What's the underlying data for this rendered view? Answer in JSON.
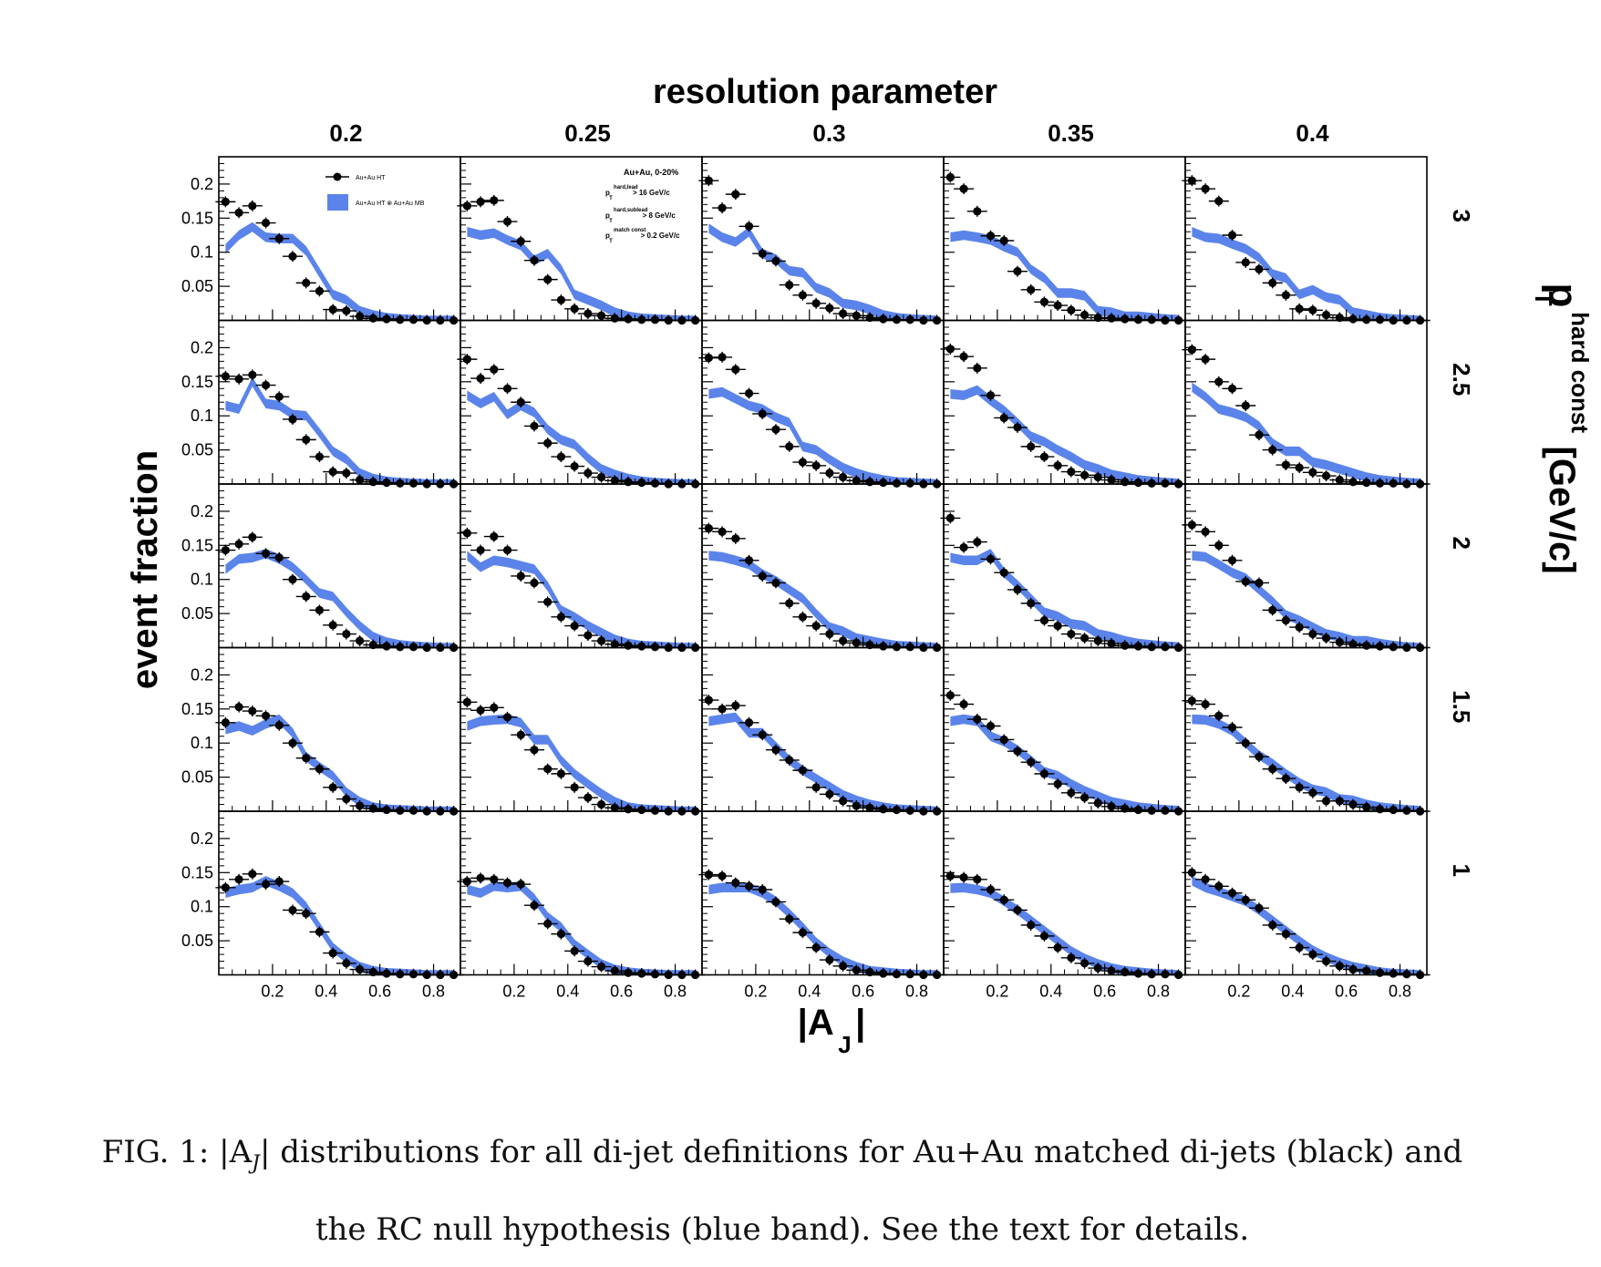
{
  "figure": {
    "col_header_title": "resolution parameter",
    "col_labels": [
      "0.2",
      "0.25",
      "0.3",
      "0.35",
      "0.4"
    ],
    "row_header_title_main": "p",
    "row_header_title_sup": "hard const",
    "row_header_title_sub": "T",
    "row_header_title_unit": "[GeV/c]",
    "row_labels": [
      "3",
      "2.5",
      "2",
      "1.5",
      "1"
    ],
    "ylabel": "event fraction",
    "xlabel_main": "|A",
    "xlabel_sub": "J",
    "xlabel_end": "|",
    "y_tick_labels": [
      "0.2",
      "0.15",
      "0.1",
      "0.05"
    ],
    "x_tick_labels": [
      "0.2",
      "0.4",
      "0.6",
      "0.8"
    ],
    "legend": {
      "series1": "Au+Au HT",
      "series2": "Au+Au HT  ⊗  Au+Au MB"
    },
    "annotation": {
      "line1": "Au+Au, 0-20%",
      "line2_label": "p",
      "line2_sup": "hard,lead",
      "line2_sub": "T",
      "line2_val": "> 16 GeV/c",
      "line3_label": "p",
      "line3_sup": "hard,sublead",
      "line3_sub": "T",
      "line3_val": "> 8 GeV/c",
      "line4_label": "p",
      "line4_sup": "match const",
      "line4_sub": "T",
      "line4_val": "> 0.2 GeV/c"
    },
    "colors": {
      "band": "#5b84ea",
      "points": "#000000"
    }
  },
  "caption": {
    "prefix": "FIG. 1: |A",
    "sub": "J",
    "line1_rest": "| distributions for all di-jet definitions for Au+Au matched di-jets (black) and",
    "line2": "the RC null hypothesis (blue band). See the text for details."
  },
  "chart_data": {
    "type": "scatter",
    "x": [
      0.025,
      0.075,
      0.125,
      0.175,
      0.225,
      0.275,
      0.325,
      0.375,
      0.425,
      0.475,
      0.525,
      0.575,
      0.625,
      0.675,
      0.725,
      0.775,
      0.825,
      0.875
    ],
    "xlim": [
      0,
      0.9
    ],
    "ylim": [
      0,
      0.24
    ],
    "panels": [
      {
        "row": "3",
        "col": "0.2",
        "points": [
          0.174,
          0.158,
          0.168,
          0.143,
          0.12,
          0.094,
          0.055,
          0.043,
          0.016,
          0.014,
          0.006,
          0.003,
          0.002,
          0.001,
          0.001,
          0,
          0,
          0
        ],
        "band": [
          0.105,
          0.125,
          0.137,
          0.122,
          0.12,
          0.12,
          0.102,
          0.07,
          0.038,
          0.03,
          0.014,
          0.008,
          0.004,
          0.002,
          0.001,
          0,
          0,
          0
        ]
      },
      {
        "row": "3",
        "col": "0.25",
        "points": [
          0.168,
          0.174,
          0.176,
          0.145,
          0.116,
          0.088,
          0.06,
          0.03,
          0.017,
          0.01,
          0.007,
          0.003,
          0.002,
          0.001,
          0.001,
          0,
          0,
          0
        ],
        "band": [
          0.13,
          0.125,
          0.128,
          0.118,
          0.11,
          0.088,
          0.098,
          0.075,
          0.038,
          0.03,
          0.022,
          0.012,
          0.006,
          0.003,
          0.002,
          0.001,
          0,
          0
        ]
      },
      {
        "row": "3",
        "col": "0.3",
        "points": [
          0.205,
          0.165,
          0.185,
          0.138,
          0.098,
          0.087,
          0.052,
          0.037,
          0.025,
          0.018,
          0.01,
          0.007,
          0.004,
          0.002,
          0.001,
          0.001,
          0,
          0
        ],
        "band": [
          0.135,
          0.122,
          0.115,
          0.13,
          0.098,
          0.09,
          0.073,
          0.07,
          0.048,
          0.04,
          0.025,
          0.022,
          0.016,
          0.008,
          0.004,
          0.002,
          0.001,
          0
        ]
      },
      {
        "row": "3",
        "col": "0.35",
        "points": [
          0.21,
          0.193,
          0.16,
          0.124,
          0.117,
          0.072,
          0.045,
          0.027,
          0.022,
          0.015,
          0.008,
          0.004,
          0.003,
          0.002,
          0.001,
          0.001,
          0,
          0
        ],
        "band": [
          0.122,
          0.125,
          0.122,
          0.118,
          0.108,
          0.1,
          0.075,
          0.062,
          0.04,
          0.04,
          0.036,
          0.014,
          0.012,
          0.006,
          0.006,
          0.004,
          0.002,
          0.001
        ]
      },
      {
        "row": "3",
        "col": "0.4",
        "points": [
          0.205,
          0.193,
          0.175,
          0.125,
          0.085,
          0.075,
          0.055,
          0.037,
          0.017,
          0.015,
          0.008,
          0.004,
          0.002,
          0.001,
          0.001,
          0,
          0,
          0
        ],
        "band": [
          0.13,
          0.122,
          0.12,
          0.112,
          0.105,
          0.092,
          0.068,
          0.062,
          0.038,
          0.045,
          0.034,
          0.03,
          0.012,
          0.008,
          0.004,
          0.002,
          0.001,
          0
        ]
      },
      {
        "row": "2.5",
        "col": "0.2",
        "points": [
          0.158,
          0.154,
          0.16,
          0.145,
          0.128,
          0.095,
          0.065,
          0.04,
          0.018,
          0.016,
          0.006,
          0.003,
          0.002,
          0.001,
          0.001,
          0,
          0,
          0
        ],
        "band": [
          0.115,
          0.11,
          0.15,
          0.118,
          0.115,
          0.102,
          0.1,
          0.075,
          0.048,
          0.036,
          0.016,
          0.008,
          0.004,
          0.002,
          0.001,
          0,
          0,
          0
        ]
      },
      {
        "row": "2.5",
        "col": "0.25",
        "points": [
          0.183,
          0.155,
          0.168,
          0.14,
          0.12,
          0.085,
          0.06,
          0.04,
          0.026,
          0.016,
          0.01,
          0.005,
          0.003,
          0.002,
          0.001,
          0,
          0,
          0
        ],
        "band": [
          0.13,
          0.118,
          0.128,
          0.102,
          0.115,
          0.105,
          0.08,
          0.065,
          0.058,
          0.038,
          0.022,
          0.014,
          0.008,
          0.004,
          0.002,
          0.001,
          0,
          0
        ]
      },
      {
        "row": "2.5",
        "col": "0.3",
        "points": [
          0.185,
          0.186,
          0.168,
          0.133,
          0.103,
          0.08,
          0.055,
          0.032,
          0.027,
          0.016,
          0.01,
          0.005,
          0.003,
          0.002,
          0.001,
          0.001,
          0,
          0
        ],
        "band": [
          0.132,
          0.135,
          0.125,
          0.115,
          0.11,
          0.098,
          0.09,
          0.055,
          0.05,
          0.036,
          0.024,
          0.016,
          0.01,
          0.006,
          0.003,
          0.002,
          0.001,
          0
        ]
      },
      {
        "row": "2.5",
        "col": "0.35",
        "points": [
          0.198,
          0.187,
          0.17,
          0.13,
          0.097,
          0.083,
          0.055,
          0.04,
          0.027,
          0.018,
          0.013,
          0.01,
          0.006,
          0.003,
          0.002,
          0.001,
          0.001,
          0
        ],
        "band": [
          0.132,
          0.13,
          0.138,
          0.122,
          0.108,
          0.09,
          0.07,
          0.062,
          0.05,
          0.04,
          0.028,
          0.022,
          0.014,
          0.01,
          0.006,
          0.004,
          0.002,
          0.001
        ]
      },
      {
        "row": "2.5",
        "col": "0.4",
        "points": [
          0.197,
          0.183,
          0.15,
          0.14,
          0.115,
          0.072,
          0.05,
          0.028,
          0.024,
          0.017,
          0.012,
          0.006,
          0.003,
          0.002,
          0.001,
          0.001,
          0,
          0
        ],
        "band": [
          0.142,
          0.128,
          0.11,
          0.105,
          0.098,
          0.085,
          0.06,
          0.048,
          0.048,
          0.032,
          0.028,
          0.022,
          0.016,
          0.01,
          0.006,
          0.004,
          0.002,
          0.001
        ]
      },
      {
        "row": "2",
        "col": "0.2",
        "points": [
          0.143,
          0.152,
          0.162,
          0.138,
          0.132,
          0.1,
          0.075,
          0.055,
          0.033,
          0.02,
          0.01,
          0.004,
          0.002,
          0.001,
          0.001,
          0,
          0,
          0
        ],
        "band": [
          0.115,
          0.13,
          0.132,
          0.138,
          0.13,
          0.118,
          0.1,
          0.08,
          0.075,
          0.052,
          0.032,
          0.016,
          0.008,
          0.004,
          0.002,
          0.001,
          0,
          0
        ]
      },
      {
        "row": "2",
        "col": "0.25",
        "points": [
          0.168,
          0.143,
          0.163,
          0.143,
          0.105,
          0.095,
          0.067,
          0.045,
          0.032,
          0.018,
          0.01,
          0.005,
          0.003,
          0.002,
          0.001,
          0,
          0,
          0
        ],
        "band": [
          0.135,
          0.118,
          0.128,
          0.125,
          0.12,
          0.115,
          0.09,
          0.055,
          0.045,
          0.032,
          0.022,
          0.012,
          0.006,
          0.003,
          0.002,
          0.001,
          0,
          0
        ]
      },
      {
        "row": "2",
        "col": "0.3",
        "points": [
          0.175,
          0.17,
          0.16,
          0.128,
          0.105,
          0.095,
          0.065,
          0.045,
          0.032,
          0.02,
          0.01,
          0.007,
          0.004,
          0.002,
          0.001,
          0.001,
          0,
          0
        ],
        "band": [
          0.135,
          0.133,
          0.128,
          0.122,
          0.108,
          0.098,
          0.085,
          0.072,
          0.05,
          0.03,
          0.024,
          0.014,
          0.01,
          0.006,
          0.003,
          0.002,
          0.001,
          0
        ]
      },
      {
        "row": "2",
        "col": "0.35",
        "points": [
          0.19,
          0.147,
          0.155,
          0.13,
          0.11,
          0.085,
          0.065,
          0.04,
          0.032,
          0.02,
          0.014,
          0.01,
          0.006,
          0.003,
          0.002,
          0.001,
          0.001,
          0
        ],
        "band": [
          0.132,
          0.128,
          0.128,
          0.138,
          0.11,
          0.092,
          0.072,
          0.052,
          0.046,
          0.035,
          0.032,
          0.02,
          0.016,
          0.01,
          0.006,
          0.004,
          0.002,
          0.001
        ]
      },
      {
        "row": "2",
        "col": "0.4",
        "points": [
          0.18,
          0.17,
          0.15,
          0.128,
          0.097,
          0.095,
          0.055,
          0.04,
          0.03,
          0.02,
          0.014,
          0.008,
          0.005,
          0.003,
          0.002,
          0.001,
          0,
          0
        ],
        "band": [
          0.135,
          0.133,
          0.122,
          0.11,
          0.102,
          0.085,
          0.068,
          0.048,
          0.04,
          0.03,
          0.02,
          0.016,
          0.01,
          0.01,
          0.006,
          0.003,
          0.001,
          0
        ]
      },
      {
        "row": "1.5",
        "col": "0.2",
        "points": [
          0.13,
          0.153,
          0.147,
          0.14,
          0.126,
          0.1,
          0.078,
          0.062,
          0.035,
          0.018,
          0.008,
          0.004,
          0.002,
          0.001,
          0.001,
          0,
          0,
          0
        ],
        "band": [
          0.12,
          0.125,
          0.118,
          0.128,
          0.135,
          0.115,
          0.08,
          0.065,
          0.052,
          0.028,
          0.014,
          0.006,
          0.003,
          0.002,
          0.001,
          0,
          0,
          0
        ]
      },
      {
        "row": "1.5",
        "col": "0.25",
        "points": [
          0.16,
          0.148,
          0.152,
          0.138,
          0.112,
          0.09,
          0.062,
          0.055,
          0.035,
          0.02,
          0.01,
          0.005,
          0.003,
          0.002,
          0.001,
          0,
          0,
          0
        ],
        "band": [
          0.125,
          0.132,
          0.134,
          0.135,
          0.13,
          0.105,
          0.105,
          0.075,
          0.055,
          0.04,
          0.026,
          0.014,
          0.006,
          0.003,
          0.002,
          0.001,
          0,
          0
        ]
      },
      {
        "row": "1.5",
        "col": "0.3",
        "points": [
          0.163,
          0.15,
          0.155,
          0.13,
          0.112,
          0.09,
          0.075,
          0.06,
          0.035,
          0.025,
          0.015,
          0.008,
          0.005,
          0.003,
          0.002,
          0.001,
          0,
          0
        ],
        "band": [
          0.132,
          0.135,
          0.138,
          0.115,
          0.115,
          0.095,
          0.075,
          0.06,
          0.048,
          0.036,
          0.024,
          0.016,
          0.01,
          0.006,
          0.003,
          0.002,
          0.001,
          0
        ]
      },
      {
        "row": "1.5",
        "col": "0.35",
        "points": [
          0.17,
          0.157,
          0.135,
          0.125,
          0.105,
          0.088,
          0.072,
          0.055,
          0.04,
          0.027,
          0.02,
          0.012,
          0.007,
          0.004,
          0.002,
          0.001,
          0.001,
          0
        ],
        "band": [
          0.132,
          0.135,
          0.132,
          0.11,
          0.102,
          0.09,
          0.075,
          0.058,
          0.052,
          0.04,
          0.03,
          0.022,
          0.014,
          0.01,
          0.006,
          0.004,
          0.002,
          0.001
        ]
      },
      {
        "row": "1.5",
        "col": "0.4",
        "points": [
          0.162,
          0.157,
          0.14,
          0.123,
          0.1,
          0.08,
          0.062,
          0.048,
          0.035,
          0.027,
          0.015,
          0.015,
          0.01,
          0.006,
          0.003,
          0.002,
          0.001,
          0
        ],
        "band": [
          0.135,
          0.134,
          0.128,
          0.118,
          0.1,
          0.082,
          0.07,
          0.055,
          0.042,
          0.032,
          0.028,
          0.018,
          0.016,
          0.01,
          0.006,
          0.004,
          0.002,
          0.001
        ]
      },
      {
        "row": "1",
        "col": "0.2",
        "points": [
          0.128,
          0.14,
          0.148,
          0.133,
          0.137,
          0.095,
          0.09,
          0.063,
          0.032,
          0.017,
          0.008,
          0.004,
          0.002,
          0.001,
          0.001,
          0,
          0,
          0
        ],
        "band": [
          0.12,
          0.125,
          0.128,
          0.138,
          0.13,
          0.12,
          0.1,
          0.07,
          0.04,
          0.024,
          0.012,
          0.006,
          0.003,
          0.002,
          0.001,
          0,
          0,
          0
        ]
      },
      {
        "row": "1",
        "col": "0.25",
        "points": [
          0.137,
          0.142,
          0.14,
          0.135,
          0.133,
          0.102,
          0.075,
          0.06,
          0.035,
          0.02,
          0.012,
          0.006,
          0.003,
          0.002,
          0.001,
          0,
          0,
          0
        ],
        "band": [
          0.125,
          0.12,
          0.13,
          0.128,
          0.13,
          0.112,
          0.085,
          0.07,
          0.045,
          0.03,
          0.016,
          0.008,
          0.004,
          0.002,
          0.001,
          0,
          0,
          0
        ]
      },
      {
        "row": "1",
        "col": "0.3",
        "points": [
          0.147,
          0.145,
          0.135,
          0.13,
          0.125,
          0.107,
          0.082,
          0.062,
          0.04,
          0.022,
          0.013,
          0.007,
          0.004,
          0.002,
          0.001,
          0.001,
          0,
          0
        ],
        "band": [
          0.125,
          0.128,
          0.128,
          0.128,
          0.12,
          0.108,
          0.09,
          0.07,
          0.048,
          0.032,
          0.02,
          0.012,
          0.006,
          0.004,
          0.002,
          0.001,
          0,
          0
        ]
      },
      {
        "row": "1",
        "col": "0.35",
        "points": [
          0.145,
          0.143,
          0.14,
          0.125,
          0.11,
          0.095,
          0.073,
          0.057,
          0.04,
          0.025,
          0.017,
          0.01,
          0.006,
          0.004,
          0.002,
          0.001,
          0.001,
          0
        ],
        "band": [
          0.127,
          0.128,
          0.125,
          0.12,
          0.108,
          0.095,
          0.08,
          0.065,
          0.05,
          0.035,
          0.024,
          0.016,
          0.01,
          0.006,
          0.004,
          0.002,
          0.001,
          0
        ]
      },
      {
        "row": "1",
        "col": "0.4",
        "points": [
          0.15,
          0.14,
          0.13,
          0.12,
          0.11,
          0.098,
          0.073,
          0.06,
          0.04,
          0.03,
          0.02,
          0.013,
          0.008,
          0.006,
          0.003,
          0.002,
          0.001,
          0
        ],
        "band": [
          0.138,
          0.128,
          0.122,
          0.115,
          0.108,
          0.095,
          0.08,
          0.065,
          0.05,
          0.036,
          0.026,
          0.018,
          0.012,
          0.008,
          0.004,
          0.002,
          0.001,
          0
        ]
      }
    ]
  }
}
